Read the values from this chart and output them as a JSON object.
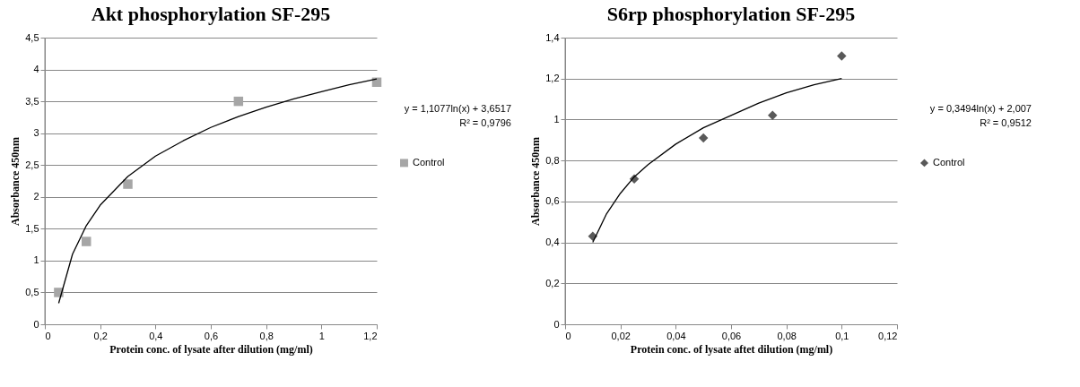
{
  "chart_data": [
    {
      "type": "scatter",
      "title": "Akt phosphorylation SF-295",
      "xlabel": "Protein conc. of lysate after dilution (mg/ml)",
      "ylabel": "Absorbance 450nm",
      "xlim": [
        0,
        1.2
      ],
      "xticks": [
        0,
        {
          "value": 0.2,
          "label": "0,2"
        },
        {
          "value": 0.4,
          "label": "0,4"
        },
        {
          "value": 0.6,
          "label": "0,6"
        },
        {
          "value": 0.8,
          "label": "0,8"
        },
        1,
        {
          "value": 1.2,
          "label": "1,2"
        }
      ],
      "ylim": [
        0,
        4.5
      ],
      "yticks": [
        0,
        {
          "value": 0.5,
          "label": "0,5"
        },
        1,
        {
          "value": 1.5,
          "label": "1,5"
        },
        2,
        {
          "value": 2.5,
          "label": "2,5"
        },
        3,
        {
          "value": 3.5,
          "label": "3,5"
        },
        4,
        {
          "value": 4.5,
          "label": "4,5"
        }
      ],
      "grid": "y",
      "legend": "right",
      "annotations": [
        "y = 1,1077ln(x) + 3,6517",
        "R² = 0,9796"
      ],
      "series": [
        {
          "name": "Control",
          "type": "scatter",
          "marker": "square",
          "color": "#a6a6a6",
          "x": [
            0.05,
            0.15,
            0.3,
            0.7,
            1.2
          ],
          "values": [
            0.5,
            1.3,
            2.2,
            3.5,
            3.8
          ]
        },
        {
          "type": "line",
          "color": "#000000",
          "x": [
            0.05,
            0.1,
            0.15,
            0.2,
            0.3,
            0.4,
            0.5,
            0.6,
            0.7,
            0.8,
            0.9,
            1.0,
            1.1,
            1.2
          ],
          "values": [
            0.33,
            1.1,
            1.55,
            1.87,
            2.32,
            2.64,
            2.88,
            3.09,
            3.26,
            3.41,
            3.54,
            3.65,
            3.76,
            3.85
          ]
        }
      ]
    },
    {
      "type": "scatter",
      "title": "S6rp phosphorylation SF-295",
      "xlabel": "Protein conc. of lysate aftet dilution (mg/ml)",
      "ylabel": "Absorbance 450nm",
      "xlim": [
        0,
        0.12
      ],
      "xticks": [
        0,
        {
          "value": 0.02,
          "label": "0,02"
        },
        {
          "value": 0.04,
          "label": "0,04"
        },
        {
          "value": 0.06,
          "label": "0,06"
        },
        {
          "value": 0.08,
          "label": "0,08"
        },
        {
          "value": 0.1,
          "label": "0,1"
        },
        {
          "value": 0.12,
          "label": "0,12"
        }
      ],
      "ylim": [
        0,
        1.4
      ],
      "yticks": [
        0,
        {
          "value": 0.2,
          "label": "0,2"
        },
        {
          "value": 0.4,
          "label": "0,4"
        },
        {
          "value": 0.6,
          "label": "0,6"
        },
        {
          "value": 0.8,
          "label": "0,8"
        },
        1,
        {
          "value": 1.2,
          "label": "1,2"
        },
        {
          "value": 1.4,
          "label": "1,4"
        }
      ],
      "grid": "y",
      "legend": "right",
      "annotations": [
        "y = 0,3494ln(x) + 2,007",
        "R² = 0,9512"
      ],
      "series": [
        {
          "name": "Control",
          "type": "scatter",
          "marker": "diamond",
          "color": "#595959",
          "x": [
            0.01,
            0.025,
            0.05,
            0.075,
            0.1
          ],
          "values": [
            0.43,
            0.71,
            0.91,
            1.02,
            1.31
          ]
        },
        {
          "type": "line",
          "color": "#000000",
          "x": [
            0.01,
            0.015,
            0.02,
            0.025,
            0.03,
            0.04,
            0.05,
            0.06,
            0.07,
            0.08,
            0.09,
            0.1
          ],
          "values": [
            0.4,
            0.54,
            0.64,
            0.72,
            0.78,
            0.88,
            0.96,
            1.02,
            1.08,
            1.13,
            1.17,
            1.2
          ]
        }
      ]
    }
  ]
}
